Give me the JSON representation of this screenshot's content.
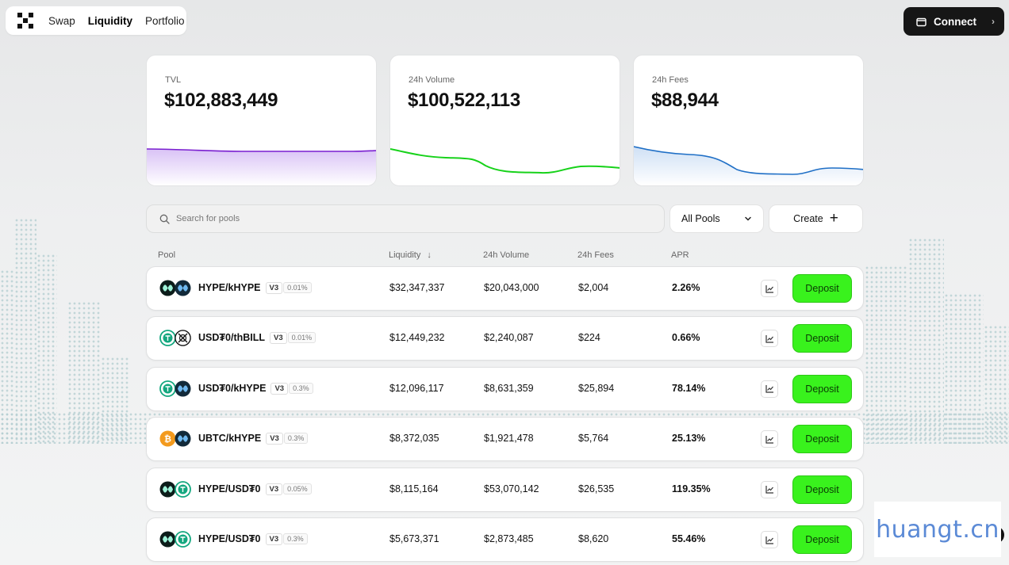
{
  "nav": {
    "links": [
      {
        "label": "Swap",
        "active": false
      },
      {
        "label": "Liquidity",
        "active": true
      },
      {
        "label": "Portfolio",
        "active": false
      }
    ],
    "connect_label": "Connect"
  },
  "stats": [
    {
      "label": "TVL",
      "value": "$102,883,449",
      "color": "#7a1fd0",
      "fill": "#e9dbfa"
    },
    {
      "label": "24h Volume",
      "value": "$100,522,113",
      "color": "#17d21a",
      "fill": "#ffffff"
    },
    {
      "label": "24h Fees",
      "value": "$88,944",
      "color": "#1f6fc6",
      "fill": "#dbe8f7"
    }
  ],
  "search": {
    "placeholder": "Search for pools",
    "icon": "search-icon"
  },
  "filter": {
    "selected": "All Pools"
  },
  "create_label": "Create",
  "columns": {
    "pool": "Pool",
    "liquidity": "Liquidity",
    "volume": "24h Volume",
    "fees": "24h Fees",
    "apr": "APR"
  },
  "rows": [
    {
      "tokens": [
        "HYPE",
        "kHYPE"
      ],
      "pair": "HYPE/kHYPE",
      "version": "V3",
      "fee_tier": "0.01%",
      "liquidity": "$32,347,337",
      "volume": "$20,043,000",
      "fees": "$2,004",
      "apr": "2.26%",
      "deposit": "Deposit"
    },
    {
      "tokens": [
        "USD₮0",
        "thBILL"
      ],
      "pair": "USD₮0/thBILL",
      "version": "V3",
      "fee_tier": "0.01%",
      "liquidity": "$12,449,232",
      "volume": "$2,240,087",
      "fees": "$224",
      "apr": "0.66%",
      "deposit": "Deposit"
    },
    {
      "tokens": [
        "USD₮0",
        "kHYPE"
      ],
      "pair": "USD₮0/kHYPE",
      "version": "V3",
      "fee_tier": "0.3%",
      "liquidity": "$12,096,117",
      "volume": "$8,631,359",
      "fees": "$25,894",
      "apr": "78.14%",
      "deposit": "Deposit"
    },
    {
      "tokens": [
        "UBTC",
        "kHYPE"
      ],
      "pair": "UBTC/kHYPE",
      "version": "V3",
      "fee_tier": "0.3%",
      "liquidity": "$8,372,035",
      "volume": "$1,921,478",
      "fees": "$5,764",
      "apr": "25.13%",
      "deposit": "Deposit"
    },
    {
      "tokens": [
        "HYPE",
        "USD₮0"
      ],
      "pair": "HYPE/USD₮0",
      "version": "V3",
      "fee_tier": "0.05%",
      "liquidity": "$8,115,164",
      "volume": "$53,070,142",
      "fees": "$26,535",
      "apr": "119.35%",
      "deposit": "Deposit"
    },
    {
      "tokens": [
        "HYPE",
        "USD₮0"
      ],
      "pair": "HYPE/USD₮0",
      "version": "V3",
      "fee_tier": "0.3%",
      "liquidity": "$5,673,371",
      "volume": "$2,873,485",
      "fees": "$8,620",
      "apr": "55.46%",
      "deposit": "Deposit"
    }
  ],
  "watermark": "huangt.cn"
}
